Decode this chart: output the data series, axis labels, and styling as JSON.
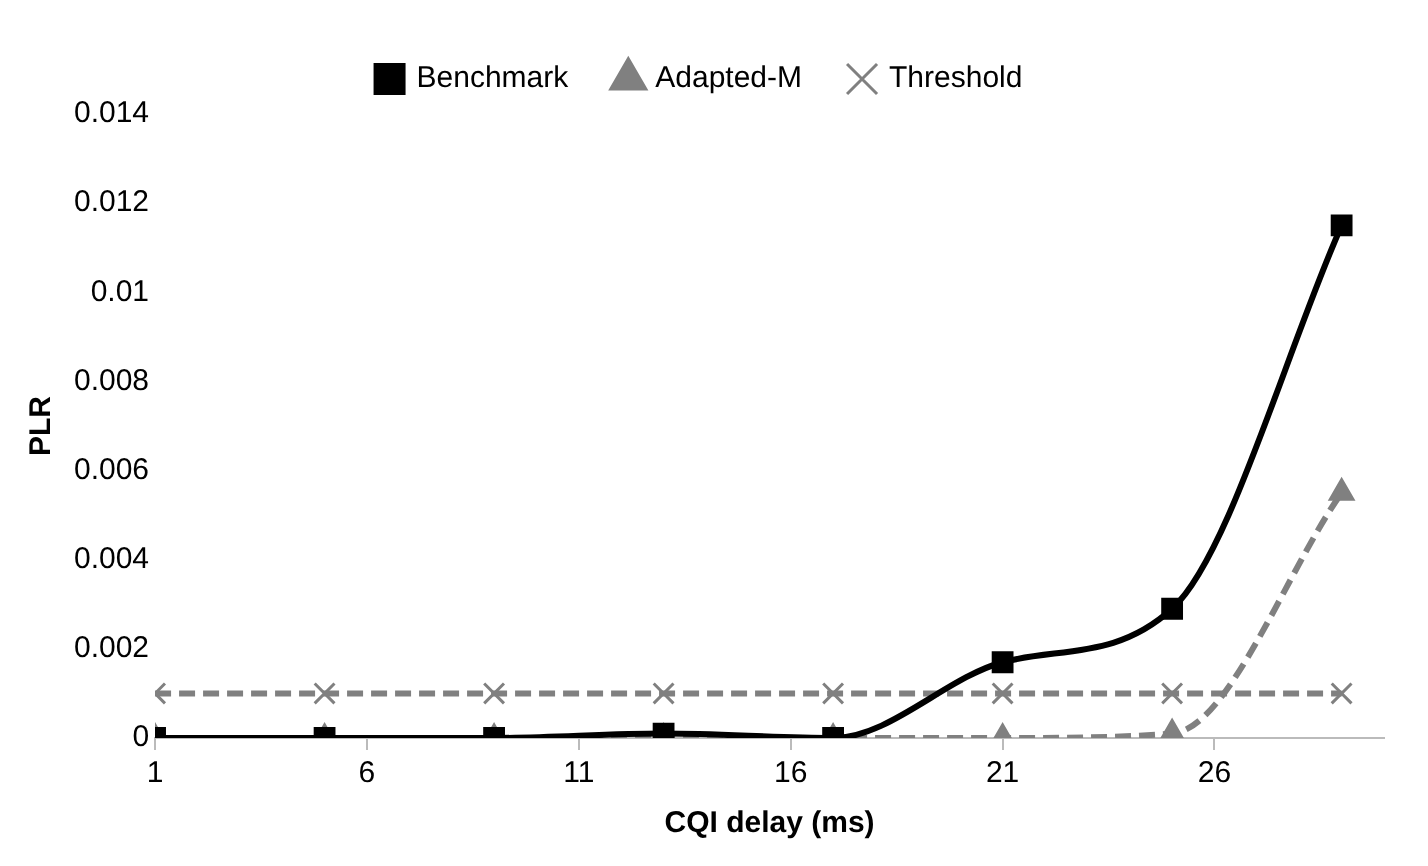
{
  "chart_data": {
    "type": "line",
    "xlabel": "CQI delay (ms)",
    "ylabel": "PLR",
    "x": [
      1,
      5,
      9,
      13,
      17,
      21,
      25,
      29
    ],
    "series": [
      {
        "name": "Benchmark",
        "color": "#000000",
        "values": [
          0,
          0,
          0,
          0.0001,
          0,
          0.0017,
          0.0029,
          0.0115
        ],
        "marker": "square",
        "line_style": "solid"
      },
      {
        "name": "Adapted-M",
        "color": "#808080",
        "values": [
          0,
          0,
          0,
          0,
          0,
          0,
          0.0001,
          0.0055
        ],
        "marker": "triangle",
        "line_style": "dashed"
      },
      {
        "name": "Threshold",
        "color": "#808080",
        "values": [
          0.001,
          0.001,
          0.001,
          0.001,
          0.001,
          0.001,
          0.001,
          0.001
        ],
        "marker": "cross",
        "line_style": "dashed"
      }
    ],
    "xlim": [
      1,
      30
    ],
    "xticks": [
      1,
      6,
      11,
      16,
      21,
      26
    ],
    "ylim": [
      0,
      0.014
    ],
    "yticks": [
      0,
      0.002,
      0.004,
      0.006,
      0.008,
      0.01,
      0.012,
      0.014
    ],
    "grid": false,
    "legend": "top"
  }
}
